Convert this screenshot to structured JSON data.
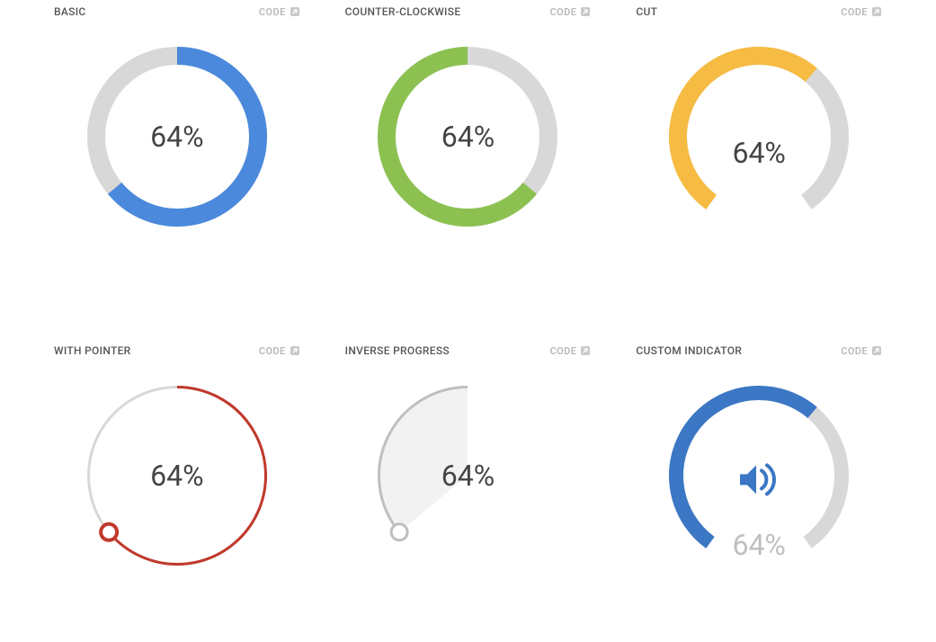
{
  "code_label": "CODE",
  "track_color": "#d8d8d8",
  "cards": [
    {
      "id": "basic",
      "title": "BASIC",
      "value": 64,
      "display": "64%",
      "type": "donut",
      "color": "#4a89dc",
      "stroke_width": 20,
      "start_angle_deg": 0,
      "sweep_direction": "clockwise",
      "total_deg": 360,
      "label_color": "#444444"
    },
    {
      "id": "counter-clockwise",
      "title": "COUNTER-CLOCKWISE",
      "value": 64,
      "display": "64%",
      "type": "donut",
      "color": "#8cc152",
      "stroke_width": 20,
      "start_angle_deg": 0,
      "sweep_direction": "counter-clockwise",
      "total_deg": 360,
      "label_color": "#444444"
    },
    {
      "id": "cut",
      "title": "CUT",
      "value": 64,
      "display": "64%",
      "type": "arc",
      "color": "#f6bb42",
      "stroke_width": 20,
      "start_angle_deg": 216,
      "total_deg": 288,
      "sweep_direction": "clockwise",
      "label_color": "#444444",
      "label_class": "cut"
    },
    {
      "id": "with-pointer",
      "title": "WITH POINTER",
      "value": 64,
      "display": "64%",
      "type": "donut-pointer",
      "color": "#c0392b",
      "stroke_width": 3,
      "start_angle_deg": 0,
      "sweep_direction": "clockwise",
      "total_deg": 360,
      "pointer_radius": 9,
      "pointer_stroke": 4,
      "pointer_fill": "#ffffff",
      "label_color": "#444444"
    },
    {
      "id": "inverse-progress",
      "title": "INVERSE PROGRESS",
      "value": 64,
      "display": "64%",
      "type": "donut-inverse",
      "color": "#bfbfbf",
      "fill_color": "#f2f2f2",
      "stroke_width": 3,
      "start_angle_deg": 0,
      "sweep_direction": "clockwise",
      "total_deg": 360,
      "pointer_radius": 9,
      "pointer_stroke": 3,
      "pointer_fill": "#ffffff",
      "label_color": "#444444"
    },
    {
      "id": "custom-indicator",
      "title": "CUSTOM INDICATOR",
      "value": 64,
      "display": "64%",
      "type": "arc-icon",
      "color": "#3b77c4",
      "stroke_width": 16,
      "start_angle_deg": 216,
      "total_deg": 288,
      "sweep_direction": "clockwise",
      "icon": "volume",
      "icon_color": "#3b77c4",
      "label_color": "#bfbfbf",
      "label_class": "custom-indicator"
    }
  ]
}
